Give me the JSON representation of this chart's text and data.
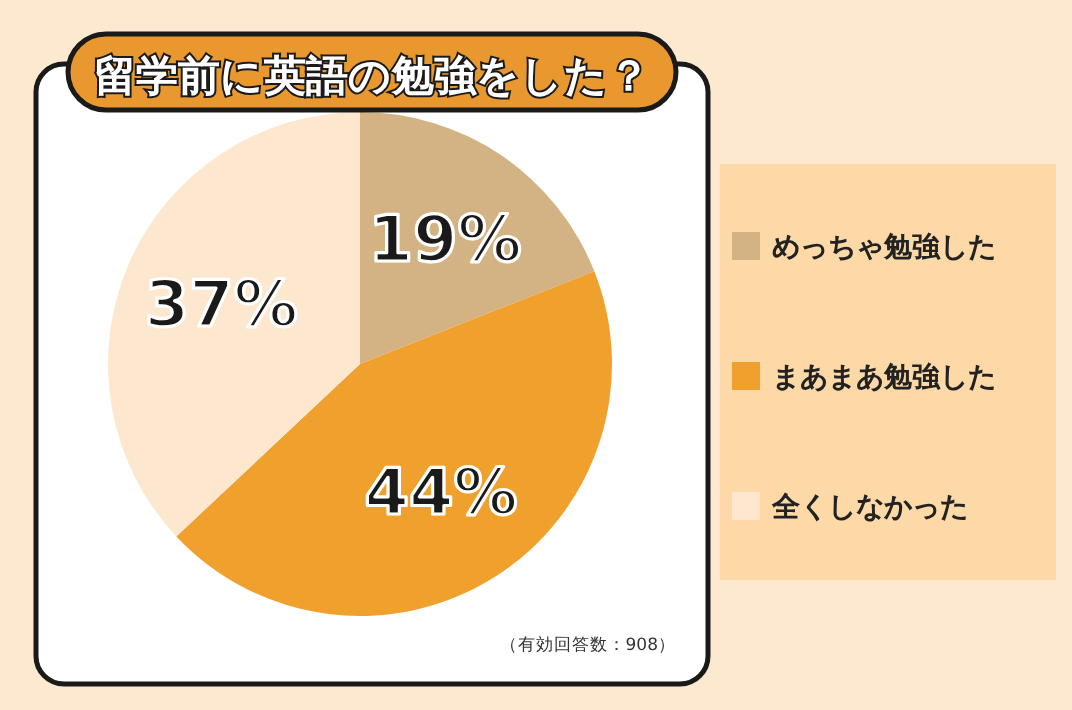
{
  "chart_data": {
    "type": "pie",
    "title": "留学前に英語の勉強をした？",
    "categories": [
      "めっちゃ勉強した",
      "まあまあ勉強した",
      "全くしなかった"
    ],
    "values": [
      19,
      44,
      37
    ],
    "colors": [
      "#d3b284",
      "#f0a02c",
      "#fde8cf"
    ],
    "value_labels": [
      "19%",
      "44%",
      "37%"
    ],
    "legend": "right",
    "annotations": [
      "（有効回答数：908）"
    ]
  }
}
